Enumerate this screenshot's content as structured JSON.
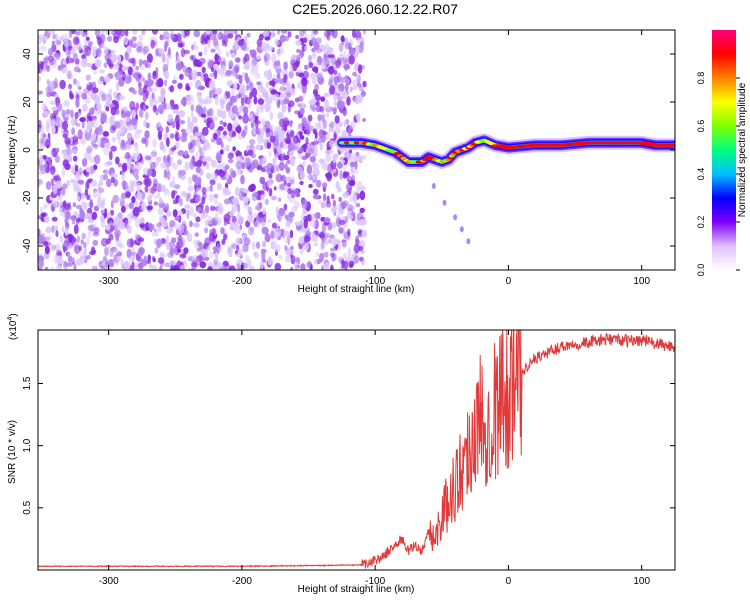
{
  "title": "C2E5.2026.060.12.22.R07",
  "chart_data": [
    {
      "type": "heatmap",
      "xlabel": "Height of straight line (km)",
      "ylabel": "Frequency (Hz)",
      "xlim": [
        -353,
        125
      ],
      "ylim": [
        -50,
        50
      ],
      "xticks": [
        -300,
        -200,
        -100,
        0,
        100
      ],
      "yticks": [
        -40,
        -20,
        0,
        20,
        40
      ],
      "colorbar": {
        "label": "Normalized spectral amplitude",
        "range": [
          0,
          1
        ],
        "ticks": [
          "0.0",
          "0.2",
          "0.4",
          "0.6",
          "0.8"
        ],
        "ticks_values": [
          0,
          0.2,
          0.4,
          0.6,
          0.8
        ],
        "colors": [
          "#ffffff",
          "#e0c0ff",
          "#8000ff",
          "#0000ff",
          "#00c0ff",
          "#00ff80",
          "#80ff00",
          "#ffff00",
          "#ff8000",
          "#ff0000",
          "#ff0080"
        ]
      },
      "noise_region": {
        "x": [
          -353,
          -108
        ],
        "y": [
          -50,
          50
        ],
        "level": 0.15
      },
      "signal_track": {
        "x": [
          -125,
          -110,
          -100,
          -95,
          -85,
          -80,
          -75,
          -65,
          -60,
          -50,
          -45,
          -40,
          -30,
          -25,
          -18,
          -10,
          0,
          20,
          40,
          60,
          80,
          100,
          110,
          125
        ],
        "y": [
          3,
          3,
          2,
          1,
          -1,
          -3,
          -5,
          -5,
          -3,
          -5,
          -4,
          -1,
          1,
          3,
          4,
          2,
          1,
          2,
          2,
          3,
          3,
          3,
          2,
          2
        ]
      },
      "secondary_track": {
        "x": [
          -56,
          -48,
          -40,
          -35,
          -30
        ],
        "y": [
          -15,
          -22,
          -28,
          -33,
          -38
        ]
      }
    },
    {
      "type": "line",
      "xlabel": "Height of straight line (km)",
      "ylabel": "SNR (10 * v/v)",
      "multiplier_label": "(x10",
      "multiplier_exp": "4",
      "xlim": [
        -353,
        125
      ],
      "ylim": [
        0,
        1.93
      ],
      "xticks": [
        -300,
        -200,
        -100,
        0,
        100
      ],
      "yticks": [
        0.5,
        1.0,
        1.5
      ],
      "ytick_labels": [
        "0.5",
        "1.0",
        "1.5"
      ],
      "series": [
        {
          "color": "#e03a3a",
          "x": [
            -353,
            -300,
            -200,
            -110,
            -95,
            -85,
            -80,
            -75,
            -70,
            -65,
            -60,
            -55,
            -50,
            -45,
            -40,
            -35,
            -30,
            -25,
            -20,
            -15,
            -10,
            -5,
            0,
            5,
            10,
            15,
            20,
            30,
            40,
            50,
            60,
            70,
            80,
            90,
            100,
            110,
            120,
            125
          ],
          "y": [
            0.03,
            0.03,
            0.03,
            0.04,
            0.1,
            0.2,
            0.25,
            0.15,
            0.2,
            0.15,
            0.3,
            0.25,
            0.45,
            0.55,
            0.7,
            0.8,
            1.0,
            1.1,
            1.25,
            1.2,
            1.3,
            1.4,
            1.45,
            1.55,
            1.6,
            1.65,
            1.7,
            1.75,
            1.8,
            1.82,
            1.83,
            1.85,
            1.86,
            1.84,
            1.85,
            1.82,
            1.8,
            1.8
          ]
        }
      ]
    }
  ]
}
